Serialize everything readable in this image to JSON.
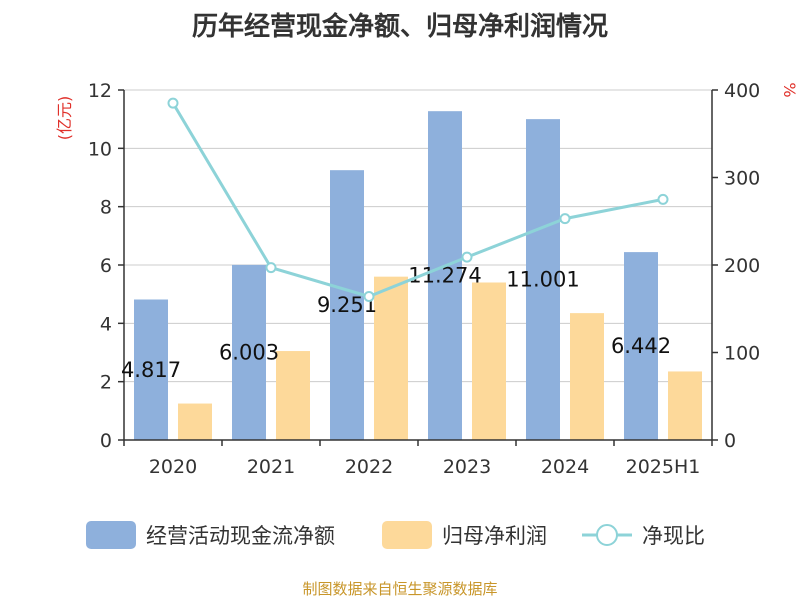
{
  "chart_data": {
    "type": "bar",
    "title": "历年经营现金净额、归母净利润情况",
    "categories": [
      "2020",
      "2021",
      "2022",
      "2023",
      "2024",
      "2025H1"
    ],
    "series": [
      {
        "name": "经营活动现金流净额",
        "type": "bar",
        "axis": "left",
        "color": "#8eb0dc",
        "values": [
          4.817,
          6.003,
          9.251,
          11.274,
          11.001,
          6.442
        ],
        "labels": [
          "4.817",
          "6.003",
          "9.251",
          "11.274",
          "11.001",
          "6.442"
        ]
      },
      {
        "name": "归母净利润",
        "type": "bar",
        "axis": "left",
        "color": "#fdd99a",
        "values": [
          1.25,
          3.05,
          5.6,
          5.4,
          4.35,
          2.35
        ]
      },
      {
        "name": "净现比",
        "type": "line",
        "axis": "right",
        "color": "#8dd3d8",
        "values": [
          385,
          197,
          164,
          209,
          253,
          275
        ]
      }
    ],
    "y_left": {
      "label": "(亿元)",
      "min": 0,
      "max": 12,
      "ticks": [
        0,
        2,
        4,
        6,
        8,
        10,
        12
      ]
    },
    "y_right": {
      "label": "%",
      "min": 0,
      "max": 400,
      "ticks": [
        0,
        100,
        200,
        300,
        400
      ]
    },
    "grid": true,
    "legend_position": "bottom"
  },
  "source": "制图数据来自恒生聚源数据库"
}
